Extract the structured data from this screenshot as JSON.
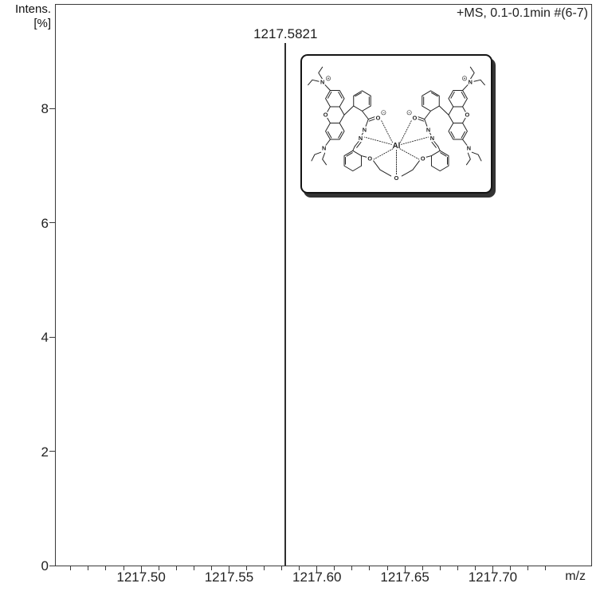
{
  "chart_data": {
    "type": "line",
    "subtype": "mass-spectrum-stick",
    "title": "",
    "xlabel": "m/z",
    "ylabel_line1": "Intens.",
    "ylabel_line2": "[%]",
    "annotation": "+MS, 0.1-0.1min #(6-7)",
    "xlim": [
      1217.451,
      1217.756
    ],
    "ylim": [
      0,
      9.83
    ],
    "x_major_ticks": [
      1217.5,
      1217.55,
      1217.6,
      1217.65,
      1217.7
    ],
    "x_major_tick_labels": [
      "1217.50",
      "1217.55",
      "1217.60",
      "1217.65",
      "1217.70"
    ],
    "x_minor_tick_step": 0.01,
    "x_minor_tick_range": [
      1217.46,
      1217.73
    ],
    "y_ticks": [
      0,
      2,
      4,
      6,
      8
    ],
    "grid": false,
    "legend": "none",
    "series": [
      {
        "name": "+MS, 0.1-0.1min #(6-7)",
        "peaks": [
          {
            "mz": 1217.5821,
            "intensity_pct": 9.15,
            "label": "1217.5821"
          }
        ]
      }
    ]
  },
  "inset": {
    "al": "Al",
    "o": "O",
    "n": "N",
    "plus": "+",
    "minus": "−"
  }
}
